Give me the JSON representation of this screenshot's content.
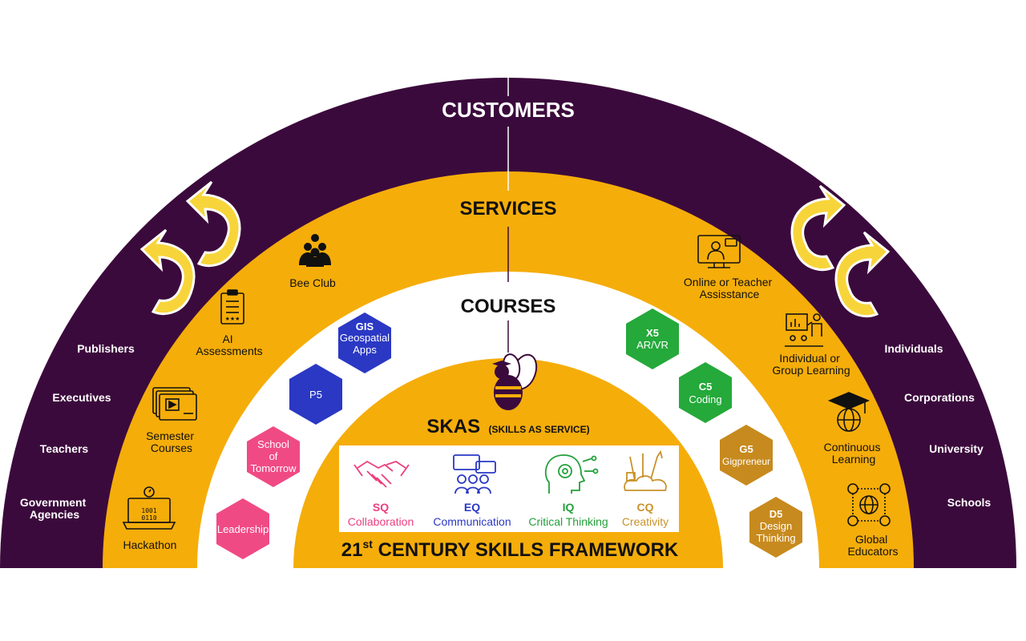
{
  "colors": {
    "purple": "#3b0a3c",
    "gold": "#f5ad0a",
    "white": "#ffffff",
    "hex_blue": "#2a38c4",
    "hex_pink": "#f04a84",
    "hex_green": "#24a93a",
    "hex_bronze": "#c78a1e",
    "sq": "#ec3f7e",
    "eq": "#2a38c4",
    "iq": "#23a03a",
    "cq": "#c8922a"
  },
  "rings": {
    "customers": "CUSTOMERS",
    "services": "SERVICES",
    "courses": "COURSES"
  },
  "customers_left": [
    "Publishers",
    "Executives",
    "Teachers",
    "Government Agencies"
  ],
  "customers_right": [
    "Individuals",
    "Corporations",
    "University",
    "Schools"
  ],
  "services_left": [
    {
      "label": "Bee Club",
      "icon": "group-icon"
    },
    {
      "label": "AI Assessments",
      "icon": "clipboard-icon"
    },
    {
      "label": "Semester Courses",
      "icon": "video-course-icon"
    },
    {
      "label": "Hackathon",
      "icon": "laptop-timer-icon"
    }
  ],
  "services_right": [
    {
      "label_1": "Online or Teacher",
      "label_2": "Assisstance",
      "icon": "online-teacher-icon"
    },
    {
      "label_1": "Individual or",
      "label_2": "Group Learning",
      "icon": "presentation-icon"
    },
    {
      "label_1": "Continuous",
      "label_2": "Learning",
      "icon": "graduation-globe-icon"
    },
    {
      "label_1": "Global",
      "label_2": "Educators",
      "icon": "global-network-icon"
    }
  ],
  "courses_left": [
    {
      "bold": "GIS",
      "sub_1": "Geospatial",
      "sub_2": "Apps",
      "color": "#2a38c4"
    },
    {
      "bold": "",
      "sub_1": "P5",
      "sub_2": "",
      "color": "#2a38c4"
    },
    {
      "bold": "",
      "sub_1": "School",
      "sub_2": "of",
      "sub_3": "Tomorrow",
      "color": "#f04a84"
    },
    {
      "bold": "",
      "sub_1": "Leadership",
      "sub_2": "",
      "color": "#f04a84"
    }
  ],
  "courses_right": [
    {
      "bold": "X5",
      "sub_1": "AR/VR",
      "color": "#24a93a"
    },
    {
      "bold": "C5",
      "sub_1": "Coding",
      "color": "#24a93a"
    },
    {
      "bold": "G5",
      "sub_1": "Gigpreneur",
      "color": "#c78a1e"
    },
    {
      "bold": "D5",
      "sub_1": "Design",
      "sub_2": "Thinking",
      "color": "#c78a1e"
    }
  ],
  "center": {
    "logo_icon": "bee-icon",
    "skas": "SKAS",
    "skas_sub": "(SKILLS AS SERVICE)",
    "framework_number": "21",
    "framework_sup": "st",
    "framework_rest": " CENTURY SKILLS FRAMEWORK"
  },
  "skills": [
    {
      "code": "SQ",
      "name": "Collaboration",
      "icon": "handshake-icon"
    },
    {
      "code": "EQ",
      "name": "Communication",
      "icon": "chat-team-icon"
    },
    {
      "code": "IQ",
      "name": "Critical Thinking",
      "icon": "brain-gear-icon"
    },
    {
      "code": "CQ",
      "name": "Creativity",
      "icon": "art-tools-icon"
    }
  ]
}
